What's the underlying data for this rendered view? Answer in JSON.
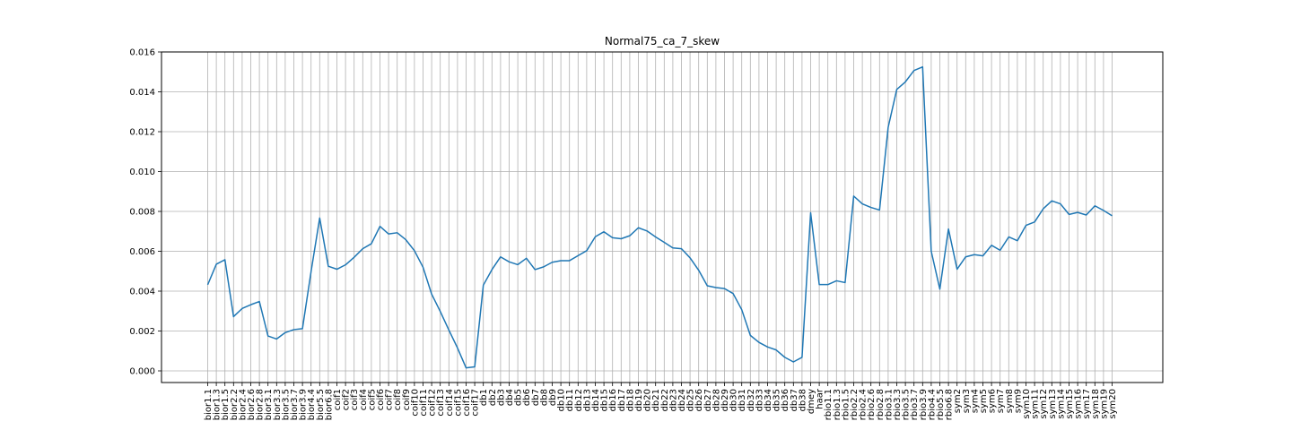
{
  "chart_data": {
    "type": "line",
    "title": "Normal75_ca_7_skew",
    "xlabel": "",
    "ylabel": "",
    "ylim": [
      -0.0006,
      0.016
    ],
    "yticks": [
      "0.000",
      "0.002",
      "0.004",
      "0.006",
      "0.008",
      "0.010",
      "0.012",
      "0.014",
      "0.016"
    ],
    "grid": true,
    "line_color": "#1f77b4",
    "categories": [
      "bior1.1",
      "bior1.3",
      "bior1.5",
      "bior2.2",
      "bior2.4",
      "bior2.6",
      "bior2.8",
      "bior3.1",
      "bior3.3",
      "bior3.5",
      "bior3.7",
      "bior3.9",
      "bior4.4",
      "bior5.5",
      "bior6.8",
      "coif1",
      "coif2",
      "coif3",
      "coif4",
      "coif5",
      "coif6",
      "coif7",
      "coif8",
      "coif9",
      "coif10",
      "coif11",
      "coif12",
      "coif13",
      "coif14",
      "coif15",
      "coif16",
      "coif17",
      "db1",
      "db2",
      "db3",
      "db4",
      "db5",
      "db6",
      "db7",
      "db8",
      "db9",
      "db10",
      "db11",
      "db12",
      "db13",
      "db14",
      "db15",
      "db16",
      "db17",
      "db18",
      "db19",
      "db20",
      "db21",
      "db22",
      "db23",
      "db24",
      "db25",
      "db26",
      "db27",
      "db28",
      "db29",
      "db30",
      "db31",
      "db32",
      "db33",
      "db34",
      "db35",
      "db36",
      "db37",
      "db38",
      "dmey",
      "haar",
      "rbio1.1",
      "rbio1.3",
      "rbio1.5",
      "rbio2.2",
      "rbio2.4",
      "rbio2.6",
      "rbio2.8",
      "rbio3.1",
      "rbio3.3",
      "rbio3.5",
      "rbio3.7",
      "rbio3.9",
      "rbio4.4",
      "rbio5.5",
      "rbio6.8",
      "sym2",
      "sym3",
      "sym4",
      "sym5",
      "sym6",
      "sym7",
      "sym8",
      "sym9",
      "sym10",
      "sym11",
      "sym12",
      "sym13",
      "sym14",
      "sym15",
      "sym16",
      "sym17",
      "sym18",
      "sym19",
      "sym20"
    ],
    "values": [
      0.00432,
      0.00535,
      0.00558,
      0.00272,
      0.00313,
      0.00332,
      0.00348,
      0.00175,
      0.0016,
      0.00192,
      0.00207,
      0.00212,
      0.00498,
      0.00767,
      0.00525,
      0.0051,
      0.00532,
      0.0057,
      0.00613,
      0.00638,
      0.00725,
      0.00687,
      0.00693,
      0.00658,
      0.00603,
      0.0052,
      0.00385,
      0.00298,
      0.00205,
      0.00115,
      0.00015,
      0.0002,
      0.0043,
      0.00508,
      0.00572,
      0.00547,
      0.00533,
      0.00565,
      0.00508,
      0.00522,
      0.00545,
      0.00553,
      0.00553,
      0.00578,
      0.00603,
      0.00673,
      0.00698,
      0.00668,
      0.00663,
      0.00678,
      0.00718,
      0.00702,
      0.00672,
      0.00645,
      0.00617,
      0.00613,
      0.00567,
      0.00505,
      0.00427,
      0.00418,
      0.00413,
      0.00388,
      0.00307,
      0.00178,
      0.00143,
      0.0012,
      0.00105,
      0.00068,
      0.00045,
      0.00068,
      0.00793,
      0.00433,
      0.00433,
      0.00452,
      0.00443,
      0.00877,
      0.00838,
      0.0082,
      0.00807,
      0.01222,
      0.01412,
      0.0145,
      0.01507,
      0.01525,
      0.006,
      0.0041,
      0.00712,
      0.0051,
      0.00572,
      0.00583,
      0.00577,
      0.0063,
      0.00605,
      0.00672,
      0.00653,
      0.0073,
      0.00747,
      0.00813,
      0.00853,
      0.00838,
      0.00785,
      0.00795,
      0.00782,
      0.00828,
      0.00805,
      0.00778
    ]
  }
}
